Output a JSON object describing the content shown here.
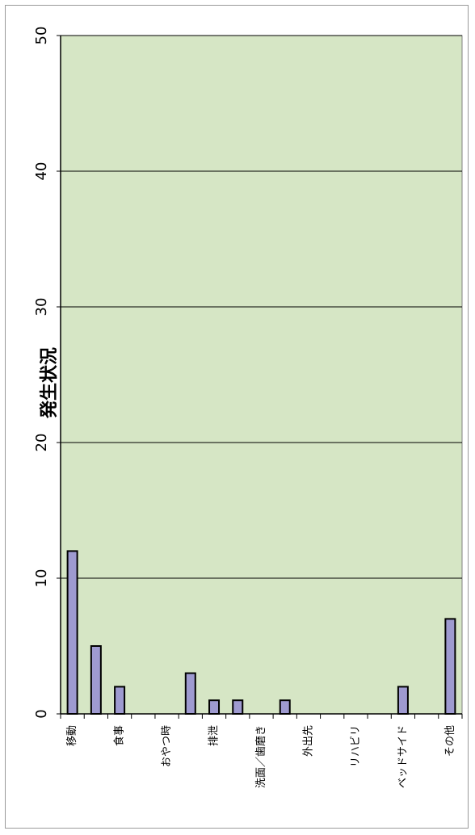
{
  "chart_data": {
    "type": "bar",
    "orientation": "rotated-90",
    "title": "発生状況",
    "categories": [
      "移動",
      "",
      "食事",
      "",
      "おやつ時",
      "",
      "排泄",
      "",
      "洗面／歯磨き",
      "",
      "外出先",
      "",
      "リハビリ",
      "",
      "ベッドサイド",
      "",
      "その他"
    ],
    "values": [
      12,
      5,
      2,
      0,
      0,
      3,
      1,
      1,
      0,
      1,
      0,
      0,
      0,
      0,
      2,
      0,
      7
    ],
    "ylim": [
      0,
      50
    ],
    "yticks": [
      0,
      10,
      20,
      30,
      40,
      50
    ],
    "grid": true,
    "colors": {
      "plot_bg": "#d6e6c5",
      "bar_fill": "#9e9ad0",
      "bar_stroke": "#000000",
      "gridline": "#000000"
    }
  }
}
